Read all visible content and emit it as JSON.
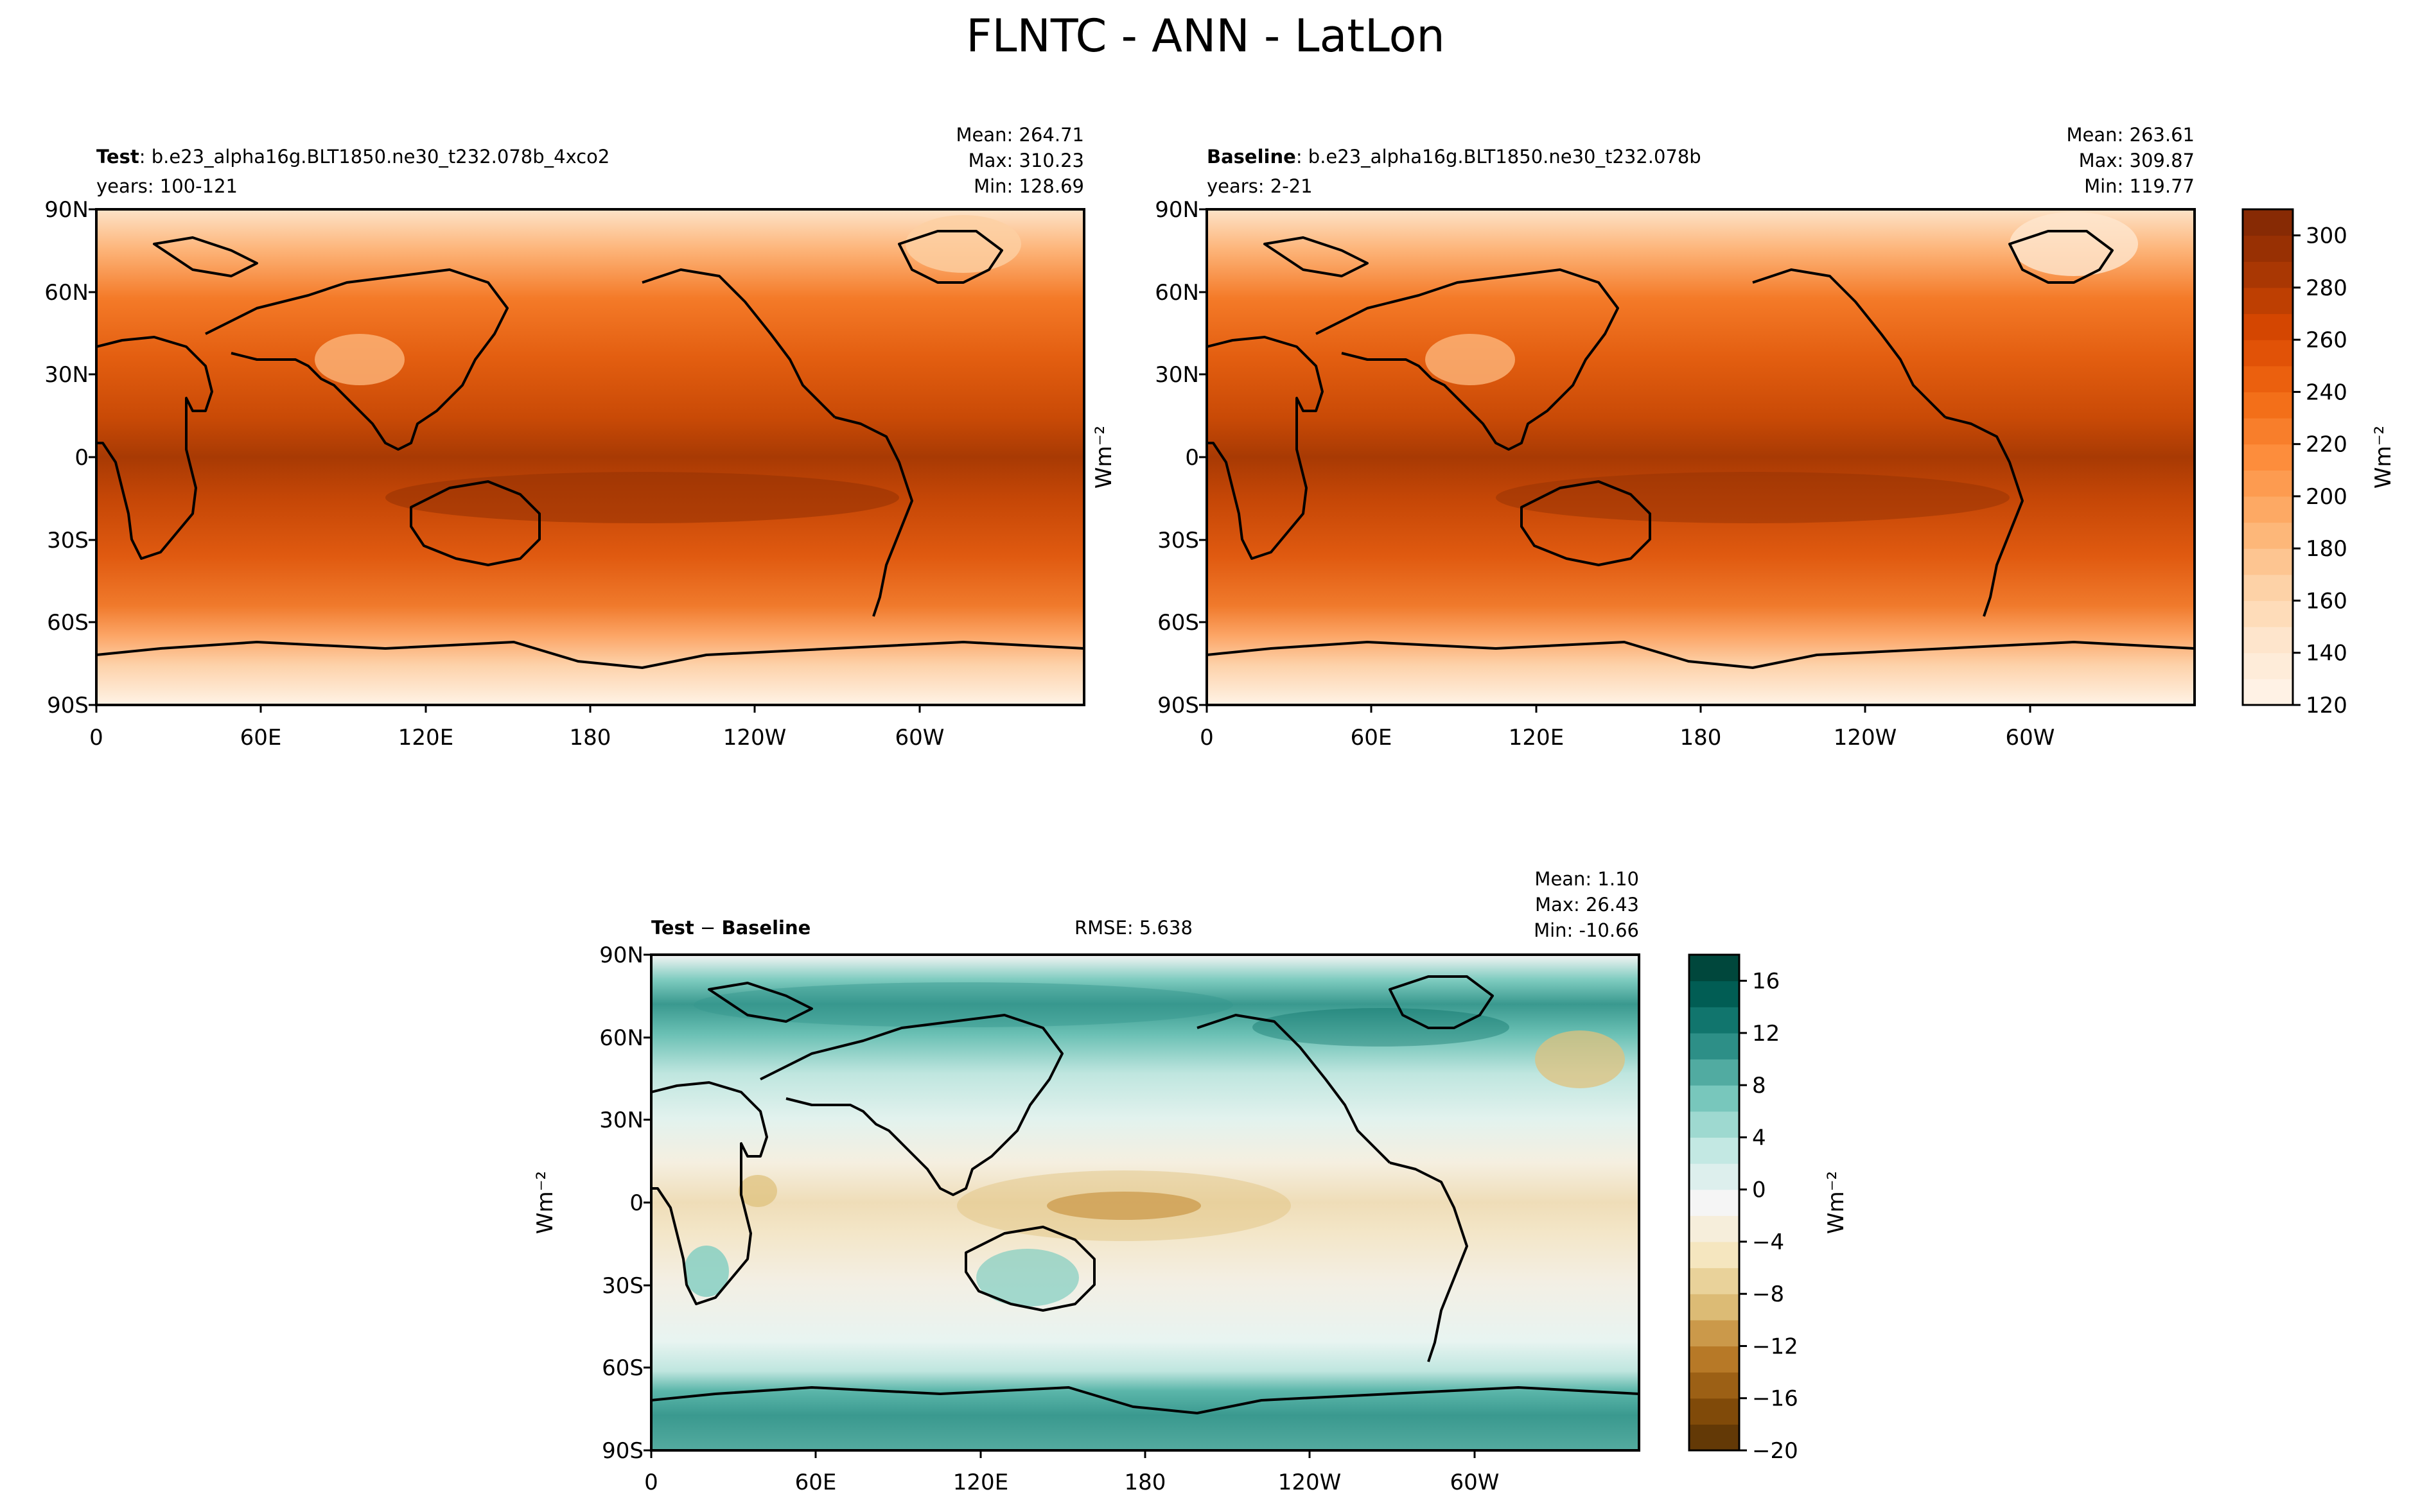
{
  "figure": {
    "title": "FLNTC - ANN - LatLon"
  },
  "chart_data": [
    {
      "type": "heatmap",
      "panel": "test",
      "label_bold": "Test",
      "label_rest": ": b.e23_alpha16g.BLT1850.ne30_t232.078b_4xco2",
      "years": "years: 100-121",
      "stats": [
        "Mean: 264.71",
        "Max: 310.23",
        "Min: 128.69"
      ],
      "xticks": [
        "0",
        "60E",
        "120E",
        "180",
        "120W",
        "60W"
      ],
      "yticks": [
        "90N",
        "60N",
        "30N",
        "0",
        "30S",
        "60S",
        "90S"
      ],
      "ylabel": "Wm⁻²",
      "colormap": "Oranges",
      "value_range": [
        120,
        310
      ]
    },
    {
      "type": "heatmap",
      "panel": "baseline",
      "label_bold": "Baseline",
      "label_rest": ": b.e23_alpha16g.BLT1850.ne30_t232.078b",
      "years": "years: 2-21",
      "stats": [
        "Mean: 263.61",
        "Max: 309.87",
        "Min: 119.77"
      ],
      "xticks": [
        "0",
        "60E",
        "120E",
        "180",
        "120W",
        "60W"
      ],
      "yticks": [
        "90N",
        "60N",
        "30N",
        "0",
        "30S",
        "60S",
        "90S"
      ],
      "colormap": "Oranges",
      "value_range": [
        120,
        310
      ],
      "colorbar": {
        "ticks": [
          "120",
          "140",
          "160",
          "180",
          "200",
          "220",
          "240",
          "260",
          "280",
          "300"
        ],
        "range": [
          120,
          310
        ],
        "label": "Wm⁻²"
      }
    },
    {
      "type": "heatmap",
      "panel": "diff",
      "label_bold_a": "Test",
      "label_op": " − ",
      "label_bold_b": "Baseline",
      "rmse": "RMSE: 5.638",
      "stats": [
        "Mean:  1.10",
        "Max: 26.43",
        "Min: -10.66"
      ],
      "xticks": [
        "0",
        "60E",
        "120E",
        "180",
        "120W",
        "60W"
      ],
      "yticks": [
        "90N",
        "60N",
        "30N",
        "0",
        "30S",
        "60S",
        "90S"
      ],
      "ylabel": "Wm⁻²",
      "colormap": "BrBG",
      "value_range": [
        -20,
        18
      ],
      "colorbar": {
        "ticks": [
          "−20",
          "−16",
          "−12",
          "−8",
          "−4",
          "0",
          "4",
          "8",
          "12",
          "16"
        ],
        "range": [
          -20,
          18
        ],
        "label": "Wm⁻²"
      }
    }
  ],
  "colors": {
    "oranges": [
      "#fff5eb",
      "#fee6ce",
      "#fdd0a2",
      "#fdae6b",
      "#fd8d3c",
      "#f16913",
      "#d94801",
      "#a63603",
      "#7f2704"
    ],
    "brbg_neg": [
      "#543005",
      "#8c510a",
      "#bf812d",
      "#dfc27d",
      "#f6e8c3",
      "#f5f5f5"
    ],
    "brbg_pos": [
      "#f5f5f5",
      "#c7eae5",
      "#80cdc1",
      "#35978f",
      "#01665e",
      "#003c30"
    ]
  }
}
